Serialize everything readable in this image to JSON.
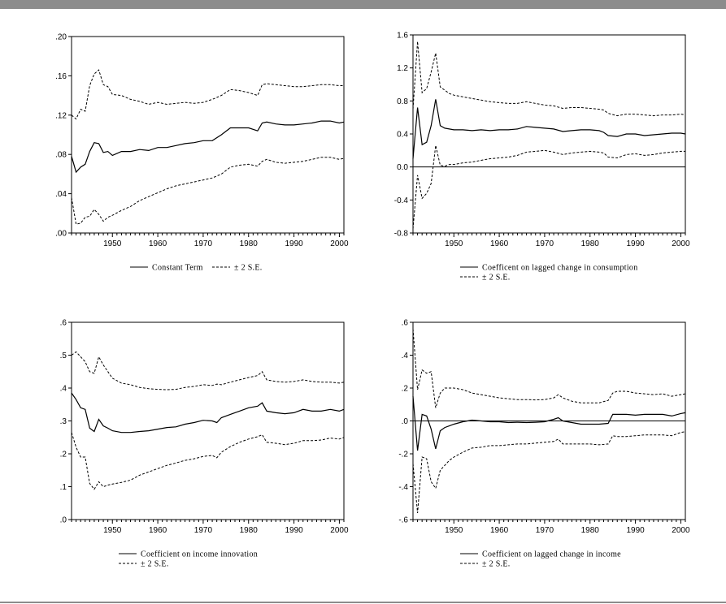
{
  "chart_data": [
    {
      "type": "line",
      "x_range": [
        1941,
        2001
      ],
      "x_ticks": [
        1950,
        1960,
        1970,
        1980,
        1990,
        2000
      ],
      "ylim": [
        0.0,
        0.2
      ],
      "y_ticks": [
        0.0,
        0.04,
        0.08,
        0.12,
        0.16,
        0.2
      ],
      "y_tick_labels": [
        ".00",
        ".04",
        ".08",
        ".12",
        ".16",
        ".20"
      ],
      "zero_line": false,
      "legend": [
        "Constant Term",
        "± 2 S.E."
      ],
      "legend_layout": "one-row",
      "x": [
        1941,
        1942,
        1943,
        1944,
        1945,
        1946,
        1947,
        1948,
        1949,
        1950,
        1952,
        1954,
        1956,
        1958,
        1960,
        1962,
        1964,
        1966,
        1968,
        1970,
        1972,
        1974,
        1976,
        1978,
        1980,
        1982,
        1983,
        1984,
        1986,
        1988,
        1990,
        1992,
        1994,
        1996,
        1998,
        2000,
        2001
      ],
      "series": [
        {
          "name": "Constant Term",
          "style": "solid",
          "values": [
            0.078,
            0.062,
            0.067,
            0.07,
            0.083,
            0.092,
            0.091,
            0.082,
            0.083,
            0.079,
            0.083,
            0.083,
            0.085,
            0.084,
            0.087,
            0.087,
            0.089,
            0.091,
            0.092,
            0.094,
            0.094,
            0.1,
            0.107,
            0.107,
            0.107,
            0.104,
            0.112,
            0.113,
            0.111,
            0.11,
            0.11,
            0.111,
            0.112,
            0.114,
            0.114,
            0.112,
            0.113
          ]
        },
        {
          "name": "± 2 S.E.",
          "style": "dashed",
          "values": [
            0.12,
            0.116,
            0.126,
            0.124,
            0.15,
            0.162,
            0.166,
            0.151,
            0.149,
            0.141,
            0.14,
            0.136,
            0.134,
            0.131,
            0.133,
            0.131,
            0.132,
            0.133,
            0.132,
            0.133,
            0.136,
            0.14,
            0.146,
            0.145,
            0.143,
            0.14,
            0.151,
            0.152,
            0.151,
            0.15,
            0.149,
            0.149,
            0.15,
            0.151,
            0.151,
            0.15,
            0.15
          ]
        },
        {
          "name": "± 2 S.E.",
          "style": "dashed",
          "values": [
            0.036,
            0.009,
            0.01,
            0.016,
            0.017,
            0.024,
            0.019,
            0.012,
            0.016,
            0.018,
            0.023,
            0.027,
            0.033,
            0.037,
            0.041,
            0.045,
            0.048,
            0.05,
            0.052,
            0.054,
            0.056,
            0.06,
            0.067,
            0.069,
            0.07,
            0.068,
            0.073,
            0.075,
            0.072,
            0.071,
            0.072,
            0.073,
            0.075,
            0.077,
            0.077,
            0.075,
            0.076
          ]
        }
      ]
    },
    {
      "type": "line",
      "x_range": [
        1941,
        2001
      ],
      "x_ticks": [
        1950,
        1960,
        1970,
        1980,
        1990,
        2000
      ],
      "ylim": [
        -0.8,
        1.6
      ],
      "y_ticks": [
        -0.8,
        -0.4,
        0.0,
        0.4,
        0.8,
        1.2,
        1.6
      ],
      "y_tick_labels": [
        "-0.8",
        "-0.4",
        "0.0",
        "0.4",
        "0.8",
        "1.2",
        "1.6"
      ],
      "zero_line": true,
      "legend": [
        "Coefficent on lagged change in consumption",
        "± 2 S.E."
      ],
      "legend_layout": "two-rows",
      "x": [
        1941,
        1942,
        1943,
        1944,
        1945,
        1946,
        1947,
        1948,
        1949,
        1950,
        1952,
        1954,
        1956,
        1958,
        1960,
        1962,
        1964,
        1966,
        1968,
        1970,
        1972,
        1974,
        1976,
        1978,
        1980,
        1982,
        1983,
        1984,
        1986,
        1988,
        1990,
        1992,
        1994,
        1996,
        1998,
        2000,
        2001
      ],
      "series": [
        {
          "name": "Coefficent on lagged change in consumption",
          "style": "solid",
          "values": [
            0.1,
            0.72,
            0.27,
            0.3,
            0.5,
            0.82,
            0.5,
            0.47,
            0.46,
            0.45,
            0.45,
            0.44,
            0.45,
            0.44,
            0.45,
            0.45,
            0.46,
            0.49,
            0.48,
            0.47,
            0.46,
            0.43,
            0.44,
            0.45,
            0.45,
            0.44,
            0.42,
            0.38,
            0.37,
            0.4,
            0.4,
            0.38,
            0.39,
            0.4,
            0.41,
            0.41,
            0.4
          ]
        },
        {
          "name": "± 2 S.E.",
          "style": "dashed",
          "values": [
            0.7,
            1.52,
            0.9,
            0.95,
            1.15,
            1.38,
            0.97,
            0.93,
            0.89,
            0.87,
            0.85,
            0.83,
            0.81,
            0.79,
            0.78,
            0.77,
            0.77,
            0.79,
            0.77,
            0.75,
            0.74,
            0.71,
            0.72,
            0.72,
            0.71,
            0.7,
            0.69,
            0.65,
            0.62,
            0.64,
            0.64,
            0.63,
            0.62,
            0.63,
            0.63,
            0.64,
            0.63
          ]
        },
        {
          "name": "± 2 S.E.",
          "style": "dashed",
          "values": [
            -0.75,
            -0.1,
            -0.38,
            -0.32,
            -0.2,
            0.26,
            0.02,
            0.01,
            0.03,
            0.03,
            0.05,
            0.06,
            0.08,
            0.1,
            0.11,
            0.12,
            0.14,
            0.18,
            0.19,
            0.2,
            0.18,
            0.15,
            0.17,
            0.18,
            0.19,
            0.18,
            0.17,
            0.12,
            0.11,
            0.15,
            0.16,
            0.14,
            0.15,
            0.17,
            0.18,
            0.19,
            0.19
          ]
        }
      ]
    },
    {
      "type": "line",
      "x_range": [
        1941,
        2001
      ],
      "x_ticks": [
        1950,
        1960,
        1970,
        1980,
        1990,
        2000
      ],
      "ylim": [
        0.0,
        0.6
      ],
      "y_ticks": [
        0.0,
        0.1,
        0.2,
        0.3,
        0.4,
        0.5,
        0.6
      ],
      "y_tick_labels": [
        ".0",
        ".1",
        ".2",
        ".3",
        ".4",
        ".5",
        ".6"
      ],
      "zero_line": false,
      "legend": [
        "Coefficient on income innovation",
        "± 2 S.E."
      ],
      "legend_layout": "two-rows",
      "x": [
        1941,
        1942,
        1943,
        1944,
        1945,
        1946,
        1947,
        1948,
        1949,
        1950,
        1952,
        1954,
        1956,
        1958,
        1960,
        1962,
        1964,
        1966,
        1968,
        1970,
        1972,
        1973,
        1974,
        1976,
        1978,
        1980,
        1982,
        1983,
        1984,
        1986,
        1988,
        1990,
        1992,
        1994,
        1996,
        1998,
        2000,
        2001
      ],
      "series": [
        {
          "name": "Coefficient on income innovation",
          "style": "solid",
          "values": [
            0.385,
            0.365,
            0.34,
            0.335,
            0.278,
            0.268,
            0.305,
            0.285,
            0.278,
            0.27,
            0.265,
            0.265,
            0.268,
            0.27,
            0.275,
            0.28,
            0.282,
            0.29,
            0.295,
            0.302,
            0.3,
            0.295,
            0.31,
            0.32,
            0.33,
            0.34,
            0.345,
            0.355,
            0.33,
            0.325,
            0.322,
            0.325,
            0.335,
            0.33,
            0.33,
            0.335,
            0.33,
            0.335
          ]
        },
        {
          "name": "± 2 S.E.",
          "style": "dashed",
          "values": [
            0.5,
            0.51,
            0.495,
            0.48,
            0.45,
            0.445,
            0.495,
            0.47,
            0.45,
            0.43,
            0.415,
            0.41,
            0.402,
            0.398,
            0.396,
            0.395,
            0.396,
            0.402,
            0.405,
            0.41,
            0.408,
            0.412,
            0.41,
            0.418,
            0.425,
            0.432,
            0.438,
            0.45,
            0.425,
            0.42,
            0.418,
            0.42,
            0.425,
            0.42,
            0.418,
            0.418,
            0.415,
            0.418
          ]
        },
        {
          "name": "± 2 S.E.",
          "style": "dashed",
          "values": [
            0.265,
            0.22,
            0.19,
            0.19,
            0.11,
            0.092,
            0.115,
            0.1,
            0.105,
            0.108,
            0.113,
            0.12,
            0.135,
            0.145,
            0.155,
            0.165,
            0.172,
            0.18,
            0.185,
            0.192,
            0.195,
            0.188,
            0.205,
            0.222,
            0.235,
            0.245,
            0.252,
            0.258,
            0.235,
            0.232,
            0.228,
            0.232,
            0.24,
            0.24,
            0.242,
            0.248,
            0.245,
            0.25
          ]
        }
      ]
    },
    {
      "type": "line",
      "x_range": [
        1941,
        2001
      ],
      "x_ticks": [
        1950,
        1960,
        1970,
        1980,
        1990,
        2000
      ],
      "ylim": [
        -0.6,
        0.6
      ],
      "y_ticks": [
        -0.6,
        -0.4,
        -0.2,
        0.0,
        0.2,
        0.4,
        0.6
      ],
      "y_tick_labels": [
        "-.6",
        "-.4",
        "-.2",
        ".0",
        ".2",
        ".4",
        ".6"
      ],
      "zero_line": true,
      "legend": [
        "Coefficient on lagged change in income",
        "± 2 S.E."
      ],
      "legend_layout": "two-rows",
      "x": [
        1941,
        1942,
        1943,
        1944,
        1945,
        1946,
        1947,
        1948,
        1949,
        1950,
        1952,
        1954,
        1956,
        1958,
        1960,
        1962,
        1964,
        1966,
        1968,
        1970,
        1972,
        1973,
        1974,
        1976,
        1978,
        1980,
        1982,
        1984,
        1985,
        1986,
        1988,
        1990,
        1992,
        1994,
        1996,
        1998,
        2000,
        2001
      ],
      "series": [
        {
          "name": "Coefficient on lagged change in income",
          "style": "solid",
          "values": [
            0.15,
            -0.18,
            0.04,
            0.03,
            -0.05,
            -0.17,
            -0.06,
            -0.04,
            -0.03,
            -0.02,
            -0.005,
            0.005,
            0.0,
            -0.005,
            -0.005,
            -0.01,
            -0.008,
            -0.01,
            -0.008,
            -0.005,
            0.01,
            0.02,
            0.0,
            -0.01,
            -0.02,
            -0.02,
            -0.02,
            -0.015,
            0.04,
            0.04,
            0.04,
            0.035,
            0.04,
            0.04,
            0.04,
            0.03,
            0.045,
            0.05
          ]
        },
        {
          "name": "± 2 S.E.",
          "style": "dashed",
          "values": [
            0.56,
            0.19,
            0.31,
            0.29,
            0.3,
            0.08,
            0.17,
            0.2,
            0.2,
            0.2,
            0.19,
            0.17,
            0.16,
            0.15,
            0.14,
            0.135,
            0.13,
            0.13,
            0.128,
            0.13,
            0.14,
            0.16,
            0.14,
            0.12,
            0.11,
            0.11,
            0.11,
            0.125,
            0.17,
            0.18,
            0.18,
            0.17,
            0.165,
            0.16,
            0.165,
            0.15,
            0.16,
            0.165
          ]
        },
        {
          "name": "± 2 S.E.",
          "style": "dashed",
          "values": [
            -0.26,
            -0.56,
            -0.22,
            -0.23,
            -0.37,
            -0.41,
            -0.3,
            -0.27,
            -0.24,
            -0.22,
            -0.19,
            -0.165,
            -0.16,
            -0.15,
            -0.15,
            -0.145,
            -0.14,
            -0.14,
            -0.135,
            -0.13,
            -0.125,
            -0.11,
            -0.14,
            -0.14,
            -0.14,
            -0.14,
            -0.145,
            -0.14,
            -0.09,
            -0.095,
            -0.095,
            -0.09,
            -0.085,
            -0.085,
            -0.085,
            -0.09,
            -0.07,
            -0.065
          ]
        }
      ]
    }
  ]
}
